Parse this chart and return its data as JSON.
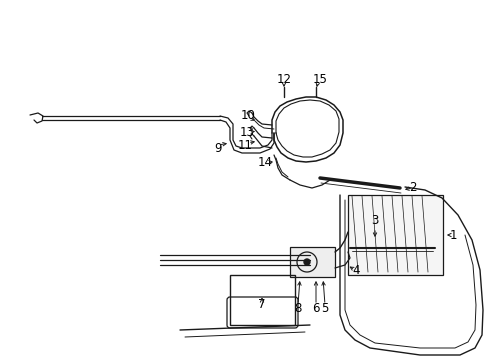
{
  "background_color": "#ffffff",
  "line_color": "#1a1a1a",
  "label_color": "#000000",
  "fig_width": 4.89,
  "fig_height": 3.6,
  "dpi": 100,
  "label_fontsize": 8.5
}
